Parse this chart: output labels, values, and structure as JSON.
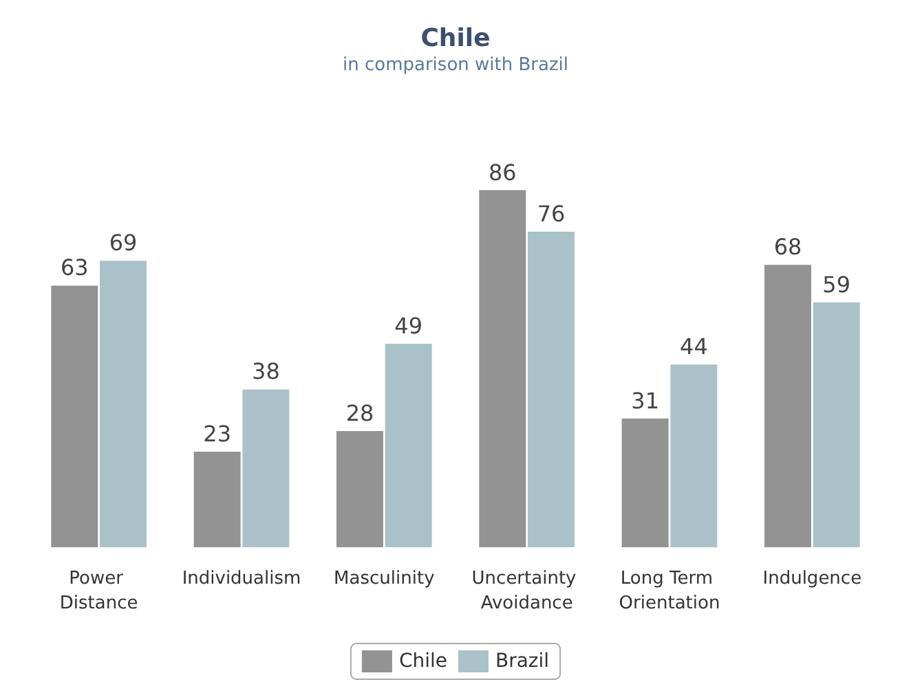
{
  "chart_data": {
    "type": "bar",
    "title": "Chile",
    "subtitle": "in comparison with Brazil",
    "categories": [
      "Power Distance",
      "Individualism",
      "Masculinity",
      "Uncertainty Avoidance",
      "Long Term Orientation",
      "Indulgence"
    ],
    "series": [
      {
        "name": "Chile",
        "color": "#939393",
        "values": [
          63,
          23,
          28,
          86,
          31,
          68
        ]
      },
      {
        "name": "Brazil",
        "color": "#aac1c9",
        "values": [
          69,
          38,
          49,
          76,
          44,
          59
        ]
      }
    ],
    "data_labels": true,
    "legend": "bottom"
  }
}
